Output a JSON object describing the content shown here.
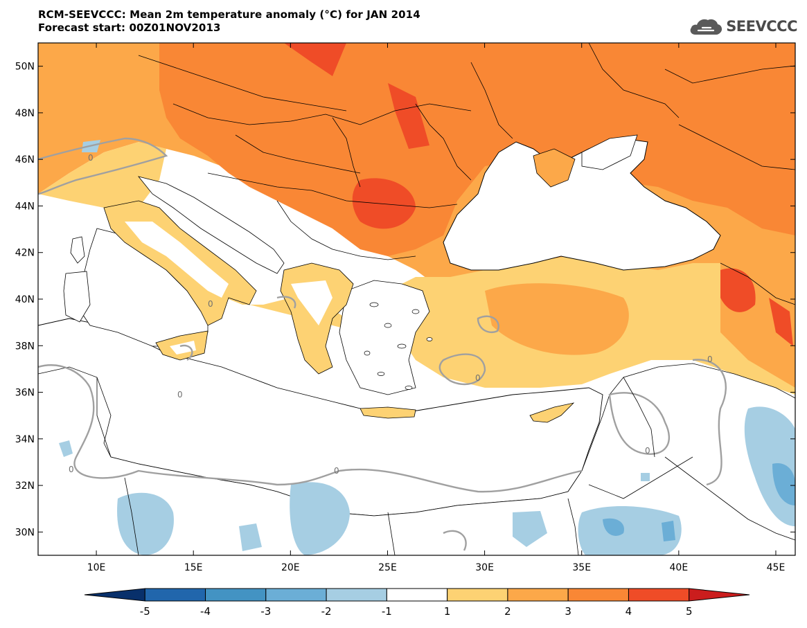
{
  "header": {
    "title_line1": "RCM-SEEVCCC: Mean 2m temperature anomaly (°C) for JAN 2014",
    "title_line2": "Forecast start: 00Z01NOV2013",
    "logo_text": "SEEVCCC"
  },
  "map": {
    "lon_range": [
      7,
      46
    ],
    "lat_range": [
      29,
      51
    ],
    "lon_ticks": [
      "10E",
      "15E",
      "20E",
      "25E",
      "30E",
      "35E",
      "40E",
      "45E"
    ],
    "lon_tick_values": [
      10,
      15,
      20,
      25,
      30,
      35,
      40,
      45
    ],
    "lat_ticks": [
      "30N",
      "32N",
      "34N",
      "36N",
      "38N",
      "40N",
      "42N",
      "44N",
      "46N",
      "48N",
      "50N"
    ],
    "lat_tick_values": [
      30,
      32,
      34,
      36,
      38,
      40,
      42,
      44,
      46,
      48,
      50
    ],
    "contour_label": "0"
  },
  "colorbar": {
    "labels": [
      "-5",
      "-4",
      "-3",
      "-2",
      "-1",
      "1",
      "2",
      "3",
      "4",
      "5"
    ],
    "colors": [
      "#08306b",
      "#2166ac",
      "#4393c3",
      "#6baed6",
      "#a6cee3",
      "#ffffff",
      "#fdd273",
      "#fca849",
      "#f98735",
      "#ef4c27",
      "#cb1d1d"
    ]
  },
  "palette": {
    "sea": "#ffffff",
    "anom_1_2": "#fdd273",
    "anom_2_3": "#fca849",
    "anom_3_4": "#f98735",
    "anom_4_5": "#ef4c27",
    "anom_neg_1_2": "#a6cee3",
    "anom_neg_2_3": "#6baed6",
    "zero_contour": "#a0a0a0"
  }
}
